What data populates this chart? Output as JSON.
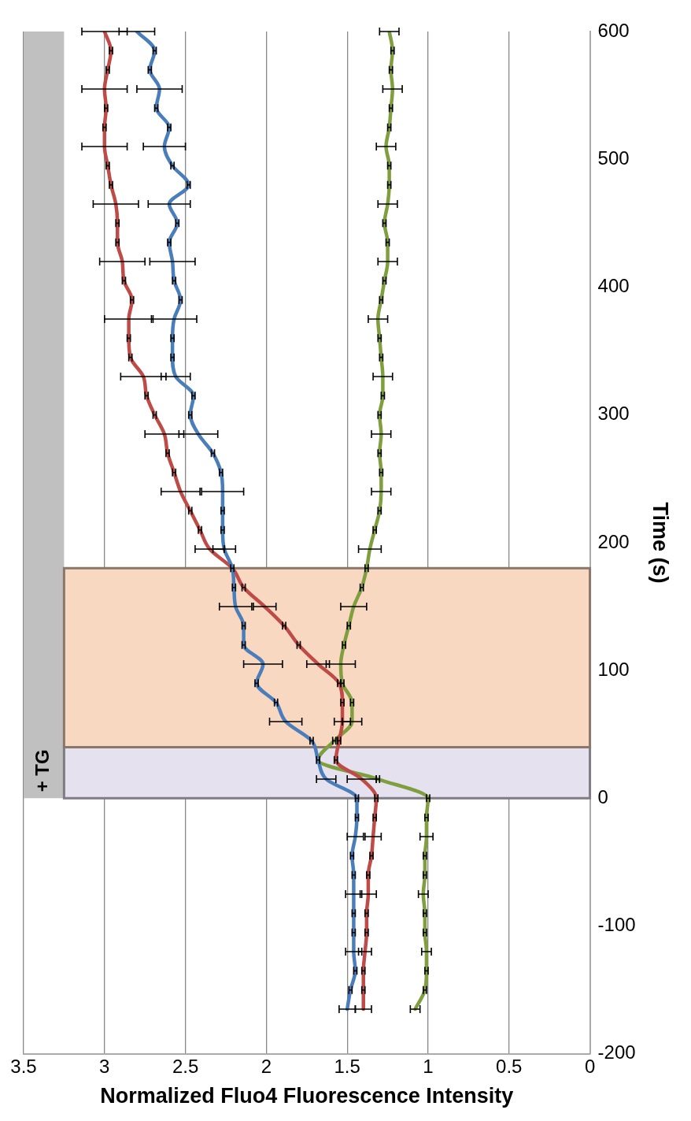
{
  "chart_data": {
    "type": "line",
    "xlabel": "Normalized Fluo4 Fluorescence Intensity",
    "ylabel": "Time (s)",
    "series": [
      {
        "color": "#4a7ebb",
        "x": [
          1.5,
          1.48,
          1.45,
          1.46,
          1.46,
          1.46,
          1.46,
          1.46,
          1.47,
          1.45,
          1.44,
          1.44,
          1.63,
          1.68,
          1.72,
          1.88,
          1.94,
          2.06,
          2.02,
          2.14,
          2.14,
          2.19,
          2.2,
          2.21,
          2.26,
          2.27,
          2.27,
          2.27,
          2.28,
          2.33,
          2.42,
          2.47,
          2.45,
          2.56,
          2.58,
          2.58,
          2.57,
          2.53,
          2.57,
          2.58,
          2.6,
          2.55,
          2.6,
          2.48,
          2.58,
          2.63,
          2.6,
          2.68,
          2.66,
          2.72,
          2.69,
          2.8
        ],
        "values": [
          -165,
          -150,
          -135,
          -120,
          -105,
          -90,
          -75,
          -60,
          -45,
          -30,
          -15,
          0,
          15,
          30,
          45,
          60,
          75,
          90,
          105,
          120,
          135,
          150,
          165,
          180,
          195,
          210,
          225,
          240,
          255,
          270,
          285,
          300,
          315,
          330,
          345,
          360,
          375,
          390,
          405,
          420,
          435,
          450,
          465,
          480,
          495,
          510,
          525,
          540,
          555,
          570,
          585,
          600
        ],
        "xerrors": [
          0.05,
          0.01,
          0.01,
          0.05,
          0.01,
          0.01,
          0.05,
          0.01,
          0.01,
          0.05,
          0.01,
          0.01,
          0.06,
          0.01,
          0.01,
          0.1,
          0.01,
          0.01,
          0.12,
          0.01,
          0.01,
          0.1,
          0.01,
          0.01,
          0.07,
          0.01,
          0.01,
          0.13,
          0.01,
          0.01,
          0.12,
          0.01,
          0.01,
          0.09,
          0.01,
          0.01,
          0.14,
          0.01,
          0.01,
          0.14,
          0.01,
          0.01,
          0.13,
          0.01,
          0.01,
          0.13,
          0.01,
          0.01,
          0.14,
          0.01,
          0.01,
          0.11
        ]
      },
      {
        "color": "#be4b48",
        "x": [
          1.4,
          1.4,
          1.4,
          1.39,
          1.38,
          1.38,
          1.37,
          1.37,
          1.35,
          1.34,
          1.33,
          1.32,
          1.41,
          1.57,
          1.55,
          1.53,
          1.53,
          1.55,
          1.68,
          1.8,
          1.89,
          2.01,
          2.14,
          2.21,
          2.35,
          2.41,
          2.47,
          2.53,
          2.57,
          2.61,
          2.63,
          2.69,
          2.74,
          2.76,
          2.84,
          2.85,
          2.85,
          2.83,
          2.88,
          2.89,
          2.92,
          2.92,
          2.93,
          2.96,
          2.98,
          3.0,
          3.0,
          2.99,
          3.0,
          2.98,
          2.96,
          3.0
        ],
        "values": [
          -165,
          -150,
          -135,
          -120,
          -105,
          -90,
          -75,
          -60,
          -45,
          -30,
          -15,
          0,
          15,
          30,
          45,
          60,
          75,
          90,
          105,
          120,
          135,
          150,
          165,
          180,
          195,
          210,
          225,
          240,
          255,
          270,
          285,
          300,
          315,
          330,
          345,
          360,
          375,
          390,
          405,
          420,
          435,
          450,
          465,
          480,
          495,
          510,
          525,
          540,
          555,
          570,
          585,
          600
        ],
        "xerrors": [
          0.05,
          0.01,
          0.01,
          0.04,
          0.01,
          0.01,
          0.05,
          0.01,
          0.01,
          0.05,
          0.01,
          0.01,
          0.09,
          0.01,
          0.01,
          0.05,
          0.01,
          0.01,
          0.07,
          0.01,
          0.01,
          0.07,
          0.01,
          null,
          0.09,
          0.01,
          0.01,
          0.12,
          0.01,
          0.01,
          0.12,
          0.01,
          0.01,
          0.14,
          0.01,
          0.01,
          0.15,
          0.01,
          0.01,
          0.14,
          0.01,
          0.01,
          0.14,
          0.01,
          0.01,
          0.14,
          0.01,
          0.01,
          0.14,
          0.01,
          0.01,
          0.14
        ]
      },
      {
        "color": "#7f9f3f",
        "x": [
          1.08,
          1.02,
          1.01,
          1.01,
          1.02,
          1.02,
          1.03,
          1.02,
          1.02,
          1.01,
          1.01,
          1.0,
          1.31,
          1.68,
          1.58,
          1.47,
          1.47,
          1.53,
          1.54,
          1.52,
          1.49,
          1.46,
          1.41,
          1.38,
          1.36,
          1.33,
          1.3,
          1.29,
          1.29,
          1.3,
          1.29,
          1.3,
          1.28,
          1.28,
          1.29,
          1.3,
          1.31,
          1.29,
          1.27,
          1.25,
          1.25,
          1.27,
          1.25,
          1.24,
          1.24,
          1.26,
          1.24,
          1.23,
          1.22,
          1.23,
          1.22,
          1.24
        ],
        "values": [
          -165,
          -150,
          -135,
          -120,
          -105,
          -90,
          -75,
          -60,
          -45,
          -30,
          -15,
          0,
          15,
          30,
          45,
          60,
          75,
          90,
          105,
          120,
          135,
          150,
          165,
          180,
          195,
          210,
          225,
          240,
          255,
          270,
          285,
          300,
          315,
          330,
          345,
          360,
          375,
          390,
          405,
          420,
          435,
          450,
          465,
          480,
          495,
          510,
          525,
          540,
          555,
          570,
          585,
          600
        ],
        "xerrors": [
          0.03,
          0.01,
          0.01,
          0.03,
          0.01,
          0.01,
          0.03,
          0.01,
          0.01,
          0.04,
          0.01,
          0.01,
          0.01,
          null,
          0.01,
          0.06,
          0.01,
          0.01,
          0.09,
          0.01,
          0.01,
          0.08,
          0.01,
          0.01,
          0.07,
          0.01,
          0.01,
          0.06,
          0.01,
          0.01,
          0.06,
          0.01,
          0.01,
          0.06,
          0.01,
          0.01,
          0.06,
          0.01,
          0.01,
          0.06,
          0.01,
          0.01,
          0.06,
          0.01,
          0.01,
          0.06,
          0.01,
          0.01,
          0.06,
          0.01,
          0.01,
          0.06
        ]
      }
    ],
    "xlim": [
      3.5,
      0
    ],
    "xticks": [
      0,
      0.5,
      1,
      1.5,
      2,
      2.5,
      3,
      3.5
    ],
    "ylim": [
      -200,
      600
    ],
    "yticks": [
      -200,
      -100,
      0,
      100,
      200,
      300,
      400,
      500,
      600
    ],
    "bands": [
      {
        "axis": "y",
        "from": 0,
        "to": 40,
        "color": "#e6e1ef"
      },
      {
        "axis": "y",
        "from": 40,
        "to": 180,
        "color": "#f8d8c0"
      },
      {
        "axis": "x",
        "from": 3.25,
        "to": 3.5,
        "label": "+ TG",
        "color": "#c0c0c0"
      }
    ],
    "grid": "x",
    "legend": false,
    "marker": "none",
    "line_style": "solid"
  }
}
